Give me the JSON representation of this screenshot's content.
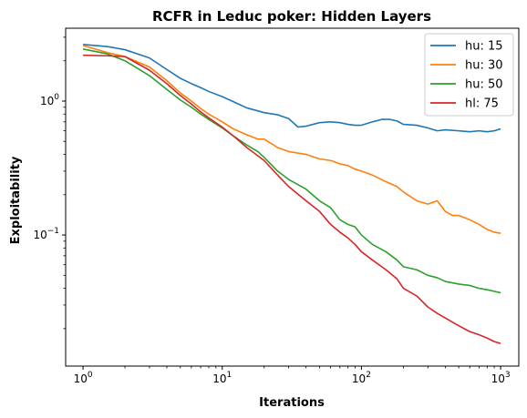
{
  "chart_data": {
    "type": "line",
    "title": "RCFR in Leduc poker: Hidden Layers",
    "xlabel": "Iterations",
    "ylabel": "Exploitability",
    "xscale": "log",
    "yscale": "log",
    "xlim": [
      0.75,
      1350
    ],
    "ylim": [
      0.0105,
      3.5
    ],
    "grid": false,
    "legend_position": "top-right",
    "x_ticks": [
      {
        "value": 1,
        "base": "10",
        "exp": "0"
      },
      {
        "value": 10,
        "base": "10",
        "exp": "1"
      },
      {
        "value": 100,
        "base": "10",
        "exp": "2"
      },
      {
        "value": 1000,
        "base": "10",
        "exp": "3"
      }
    ],
    "y_ticks": [
      {
        "value": 1,
        "base": "10",
        "exp": "0"
      },
      {
        "value": 0.1,
        "base": "10",
        "exp": "−1"
      }
    ],
    "series": [
      {
        "name": "hu: 15",
        "color": "#1f77b4",
        "points": [
          [
            1,
            2.65
          ],
          [
            1.5,
            2.55
          ],
          [
            2,
            2.42
          ],
          [
            3,
            2.1
          ],
          [
            4,
            1.72
          ],
          [
            5,
            1.48
          ],
          [
            6,
            1.35
          ],
          [
            7,
            1.26
          ],
          [
            8,
            1.18
          ],
          [
            10,
            1.08
          ],
          [
            12,
            0.99
          ],
          [
            15,
            0.89
          ],
          [
            20,
            0.82
          ],
          [
            25,
            0.79
          ],
          [
            30,
            0.74
          ],
          [
            35,
            0.64
          ],
          [
            40,
            0.65
          ],
          [
            50,
            0.69
          ],
          [
            60,
            0.7
          ],
          [
            70,
            0.69
          ],
          [
            80,
            0.67
          ],
          [
            90,
            0.66
          ],
          [
            100,
            0.66
          ],
          [
            120,
            0.7
          ],
          [
            140,
            0.73
          ],
          [
            160,
            0.73
          ],
          [
            180,
            0.71
          ],
          [
            200,
            0.67
          ],
          [
            250,
            0.66
          ],
          [
            300,
            0.63
          ],
          [
            350,
            0.6
          ],
          [
            400,
            0.61
          ],
          [
            500,
            0.6
          ],
          [
            600,
            0.59
          ],
          [
            700,
            0.6
          ],
          [
            800,
            0.59
          ],
          [
            900,
            0.6
          ],
          [
            1000,
            0.62
          ]
        ]
      },
      {
        "name": "hu: 30",
        "color": "#ff7f0e",
        "points": [
          [
            1,
            2.6
          ],
          [
            1.5,
            2.3
          ],
          [
            2,
            2.15
          ],
          [
            3,
            1.8
          ],
          [
            4,
            1.42
          ],
          [
            5,
            1.15
          ],
          [
            6,
            1.0
          ],
          [
            7,
            0.88
          ],
          [
            8,
            0.8
          ],
          [
            10,
            0.7
          ],
          [
            12,
            0.62
          ],
          [
            15,
            0.56
          ],
          [
            18,
            0.52
          ],
          [
            20,
            0.52
          ],
          [
            25,
            0.45
          ],
          [
            30,
            0.42
          ],
          [
            40,
            0.4
          ],
          [
            50,
            0.37
          ],
          [
            60,
            0.36
          ],
          [
            70,
            0.34
          ],
          [
            80,
            0.33
          ],
          [
            90,
            0.31
          ],
          [
            100,
            0.3
          ],
          [
            120,
            0.28
          ],
          [
            150,
            0.25
          ],
          [
            180,
            0.23
          ],
          [
            200,
            0.21
          ],
          [
            250,
            0.18
          ],
          [
            300,
            0.17
          ],
          [
            350,
            0.18
          ],
          [
            400,
            0.15
          ],
          [
            450,
            0.14
          ],
          [
            500,
            0.14
          ],
          [
            600,
            0.13
          ],
          [
            700,
            0.12
          ],
          [
            800,
            0.11
          ],
          [
            900,
            0.105
          ],
          [
            1000,
            0.103
          ]
        ]
      },
      {
        "name": "hu: 50",
        "color": "#2ca02c",
        "points": [
          [
            1,
            2.45
          ],
          [
            1.5,
            2.25
          ],
          [
            2,
            2.0
          ],
          [
            3,
            1.55
          ],
          [
            4,
            1.22
          ],
          [
            5,
            1.02
          ],
          [
            6,
            0.9
          ],
          [
            7,
            0.8
          ],
          [
            8,
            0.73
          ],
          [
            10,
            0.63
          ],
          [
            12,
            0.55
          ],
          [
            15,
            0.47
          ],
          [
            18,
            0.42
          ],
          [
            20,
            0.38
          ],
          [
            25,
            0.3
          ],
          [
            30,
            0.26
          ],
          [
            40,
            0.22
          ],
          [
            50,
            0.18
          ],
          [
            60,
            0.16
          ],
          [
            70,
            0.13
          ],
          [
            80,
            0.12
          ],
          [
            90,
            0.115
          ],
          [
            100,
            0.1
          ],
          [
            120,
            0.085
          ],
          [
            150,
            0.075
          ],
          [
            180,
            0.065
          ],
          [
            200,
            0.058
          ],
          [
            250,
            0.055
          ],
          [
            300,
            0.05
          ],
          [
            350,
            0.048
          ],
          [
            400,
            0.045
          ],
          [
            500,
            0.043
          ],
          [
            600,
            0.042
          ],
          [
            700,
            0.04
          ],
          [
            800,
            0.039
          ],
          [
            900,
            0.038
          ],
          [
            1000,
            0.037
          ]
        ]
      },
      {
        "name": "hl: 75",
        "color": "#d62728",
        "points": [
          [
            1,
            2.2
          ],
          [
            1.5,
            2.18
          ],
          [
            2,
            2.15
          ],
          [
            3,
            1.7
          ],
          [
            4,
            1.35
          ],
          [
            5,
            1.1
          ],
          [
            6,
            0.95
          ],
          [
            7,
            0.83
          ],
          [
            8,
            0.75
          ],
          [
            10,
            0.64
          ],
          [
            12,
            0.55
          ],
          [
            15,
            0.45
          ],
          [
            20,
            0.36
          ],
          [
            25,
            0.28
          ],
          [
            30,
            0.23
          ],
          [
            40,
            0.18
          ],
          [
            50,
            0.15
          ],
          [
            60,
            0.12
          ],
          [
            70,
            0.105
          ],
          [
            80,
            0.095
          ],
          [
            90,
            0.085
          ],
          [
            100,
            0.075
          ],
          [
            120,
            0.065
          ],
          [
            150,
            0.055
          ],
          [
            180,
            0.047
          ],
          [
            200,
            0.04
          ],
          [
            250,
            0.035
          ],
          [
            300,
            0.029
          ],
          [
            350,
            0.026
          ],
          [
            400,
            0.024
          ],
          [
            500,
            0.021
          ],
          [
            600,
            0.019
          ],
          [
            700,
            0.018
          ],
          [
            800,
            0.017
          ],
          [
            900,
            0.016
          ],
          [
            1000,
            0.0155
          ]
        ]
      }
    ]
  }
}
